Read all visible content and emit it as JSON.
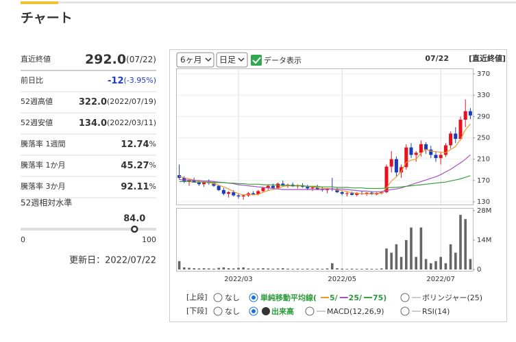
{
  "header": {
    "title": "チャート"
  },
  "stats": [
    {
      "label": "直近終値",
      "value": "292.0",
      "suffix": "(07/22)"
    },
    {
      "label": "前日比",
      "value": "-12",
      "suffix": "(-3.95%)"
    },
    {
      "label": "52週高値",
      "value": "322.0",
      "suffix": "(2022/07/19)"
    },
    {
      "label": "52週安値",
      "value": "134.0",
      "suffix": "(2022/03/11)"
    },
    {
      "label": "騰落率 1週間",
      "value": "12.74",
      "suffix": "%"
    },
    {
      "label": "騰落率 1か月",
      "value": "45.27",
      "suffix": "%"
    },
    {
      "label": "騰落率 3か月",
      "value": "92.11",
      "suffix": "%"
    }
  ],
  "relative_level": {
    "label": "52週相対水準",
    "value": {
      "value": 84,
      "label": "84.0"
    },
    "min": 0,
    "max": 100
  },
  "updated": "更新日：2022/07/22",
  "controls": {
    "period": "6ヶ月",
    "interval": "日足",
    "show_data": "データ表示",
    "date": "07/22",
    "price_type": "[直近終値]",
    "upper": {
      "label": "[上段]",
      "none": "なし",
      "sma": "単純移動平均線(",
      "bollinger": "ボリンジャー(25)"
    },
    "lower": {
      "label": "[下段]",
      "none": "なし",
      "volume": "出来高",
      "macd": "MACD(12,26,9)",
      "rsi": "RSI(14)"
    }
  },
  "chart_data": {
    "type": "candlestick",
    "up_color": "#e8101c",
    "down_color": "#1c3bb8",
    "grid": true,
    "categories": [
      null,
      null,
      null,
      null,
      null,
      null,
      null,
      null,
      null,
      null,
      null,
      null,
      "2022/03",
      null,
      null,
      null,
      null,
      null,
      null,
      null,
      null,
      null,
      null,
      null,
      null,
      null,
      null,
      null,
      null,
      null,
      null,
      null,
      null,
      "2022/05",
      null,
      null,
      null,
      null,
      null,
      null,
      null,
      null,
      null,
      null,
      null,
      null,
      null,
      null,
      null,
      null,
      null,
      null,
      null,
      "2022/07",
      null,
      null,
      null,
      null,
      null,
      null
    ],
    "open": [
      180,
      175,
      168,
      170,
      166,
      163,
      167,
      165,
      160,
      152,
      145,
      148,
      142,
      140,
      142,
      146,
      144,
      150,
      156,
      160,
      156,
      164,
      160,
      162,
      159,
      161,
      158,
      155,
      157,
      154,
      152,
      155,
      153,
      148,
      145,
      146,
      143,
      146,
      145,
      147,
      144,
      146,
      148,
      196,
      210,
      185,
      195,
      232,
      218,
      222,
      238,
      228,
      218,
      212,
      218,
      236,
      258,
      248,
      284,
      300
    ],
    "high": [
      200,
      178,
      172,
      175,
      170,
      168,
      172,
      168,
      162,
      156,
      150,
      152,
      146,
      144,
      148,
      150,
      152,
      158,
      162,
      164,
      166,
      170,
      164,
      166,
      163,
      165,
      162,
      160,
      162,
      158,
      156,
      175,
      156,
      152,
      150,
      149,
      148,
      150,
      148,
      150,
      148,
      150,
      200,
      225,
      215,
      200,
      238,
      240,
      225,
      245,
      242,
      235,
      225,
      222,
      240,
      262,
      270,
      290,
      322,
      306
    ],
    "low": [
      172,
      165,
      160,
      166,
      160,
      158,
      162,
      158,
      150,
      142,
      138,
      140,
      136,
      134,
      139,
      142,
      142,
      148,
      152,
      154,
      154,
      158,
      156,
      158,
      155,
      156,
      152,
      150,
      152,
      149,
      146,
      150,
      146,
      142,
      140,
      142,
      140,
      143,
      141,
      143,
      142,
      144,
      146,
      185,
      178,
      175,
      190,
      212,
      205,
      215,
      220,
      212,
      205,
      200,
      214,
      230,
      240,
      245,
      270,
      285
    ],
    "close": [
      175,
      168,
      170,
      166,
      163,
      167,
      165,
      160,
      152,
      145,
      148,
      142,
      140,
      142,
      146,
      144,
      150,
      156,
      160,
      156,
      164,
      160,
      162,
      159,
      161,
      158,
      155,
      157,
      154,
      152,
      155,
      153,
      148,
      145,
      146,
      143,
      146,
      145,
      147,
      144,
      146,
      148,
      196,
      210,
      185,
      195,
      232,
      218,
      222,
      238,
      228,
      218,
      212,
      218,
      236,
      258,
      248,
      284,
      300,
      292
    ],
    "ylim": [
      130,
      370
    ],
    "yticks": [
      130,
      170,
      210,
      250,
      290,
      330,
      370
    ],
    "lines": [
      {
        "name": "5/",
        "color": "#f0962a",
        "values": [
          178,
          175,
          173,
          171,
          168,
          167,
          166,
          164,
          161,
          158,
          154,
          149,
          145,
          143,
          144,
          143,
          144,
          148,
          151,
          153,
          155,
          159,
          160,
          160,
          161,
          160,
          159,
          158,
          157,
          155,
          155,
          154,
          152,
          151,
          149,
          147,
          146,
          145,
          145,
          145,
          146,
          146,
          156,
          169,
          177,
          187,
          204,
          208,
          210,
          221,
          228,
          225,
          224,
          223,
          222,
          228,
          234,
          247,
          265,
          276
        ]
      },
      {
        "name": "25/",
        "color": "#a24fc4",
        "values": [
          172,
          171,
          171,
          170,
          170,
          169,
          169,
          168,
          167,
          166,
          165,
          164,
          162,
          161,
          160,
          159,
          158,
          157,
          156,
          155,
          154,
          153,
          153,
          153,
          153,
          153,
          153,
          153,
          153,
          153,
          154,
          154,
          154,
          154,
          153,
          152,
          151,
          150,
          150,
          149,
          149,
          149,
          151,
          153,
          154,
          156,
          159,
          162,
          165,
          168,
          171,
          174,
          177,
          181,
          186,
          191,
          197,
          203,
          210,
          218
        ]
      },
      {
        "name": "75)",
        "color": "#3aa03a",
        "values": [
          168,
          168,
          168,
          167,
          167,
          167,
          167,
          166,
          166,
          166,
          165,
          165,
          164,
          164,
          163,
          163,
          163,
          162,
          162,
          162,
          161,
          161,
          161,
          160,
          160,
          160,
          159,
          159,
          159,
          158,
          158,
          158,
          157,
          157,
          157,
          156,
          156,
          156,
          155,
          155,
          155,
          155,
          156,
          157,
          157,
          158,
          159,
          160,
          161,
          162,
          163,
          164,
          165,
          166,
          167,
          169,
          171,
          173,
          176,
          179
        ]
      }
    ],
    "volume": {
      "color": "#666666",
      "ylim": [
        0,
        28
      ],
      "yticks": [
        {
          "value": 0,
          "label": "0"
        },
        {
          "value": 14,
          "label": "14M"
        },
        {
          "value": 28,
          "label": "28M"
        }
      ],
      "values": [
        4,
        1,
        0.8,
        0.6,
        0.5,
        0.6,
        0.5,
        0.4,
        0.8,
        1,
        0.6,
        0.5,
        0.8,
        1,
        0.5,
        0.4,
        0.5,
        0.6,
        0.5,
        0.4,
        0.5,
        0.6,
        0.4,
        0.3,
        0.4,
        0.3,
        0.4,
        0.3,
        0.4,
        0.3,
        0.5,
        3,
        0.6,
        0.4,
        0.3,
        0.4,
        0.3,
        0.3,
        0.4,
        0.3,
        0.3,
        0.5,
        10,
        8,
        12,
        6,
        14,
        20,
        6,
        20,
        5,
        3,
        4,
        6,
        3,
        12,
        8,
        26,
        24,
        5
      ]
    }
  }
}
